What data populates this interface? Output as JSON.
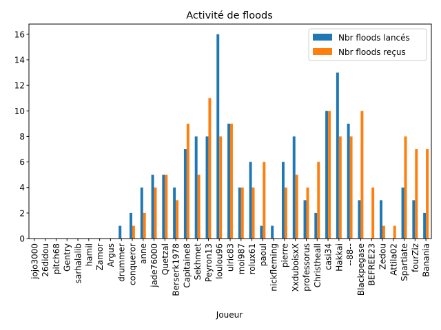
{
  "chart_data": {
    "type": "bar",
    "title": "Activité de floods",
    "xlabel": "Joueur",
    "ylabel": "",
    "ylim": [
      0,
      16.8
    ],
    "yticks": [
      0,
      2,
      4,
      6,
      8,
      10,
      12,
      14,
      16
    ],
    "grid": false,
    "legend_position": "top-right",
    "categories": [
      "jojo3000",
      "26didou",
      "pitch68",
      "Gentry",
      "sarhalalib",
      "hamil",
      "Zamor",
      "Argus",
      "drummer",
      "conqueror",
      "anne",
      "jade76000",
      "Quetzal",
      "Berserk1978",
      "Capitaine8",
      "Sekhmet",
      "Peyron13",
      "loulou96",
      "ulric83",
      "moi987",
      "rolux61",
      "paoul",
      "nickfleming",
      "pierre",
      "XxduboisxX",
      "professorus",
      "Christheall",
      "casi34",
      "Hakkai",
      "--88--",
      "Blackpegase",
      "BEFREE23",
      "Zedou",
      "Attila02",
      "Spartiate",
      "fourZiz",
      "Banania"
    ],
    "series": [
      {
        "name": "Nbr floods lancés",
        "color": "#1f77b4",
        "values": [
          0,
          0,
          0,
          0,
          0,
          0,
          0,
          0,
          1,
          2,
          4,
          5,
          5,
          4,
          7,
          8,
          8,
          16,
          9,
          4,
          6,
          1,
          1,
          6,
          8,
          3,
          2,
          10,
          13,
          9,
          3,
          0,
          3,
          0,
          4,
          3,
          2
        ]
      },
      {
        "name": "Nbr floods reçus",
        "color": "#ff7f0e",
        "values": [
          0,
          0,
          0,
          0,
          0,
          0,
          0,
          0,
          0,
          1,
          2,
          4,
          5,
          3,
          9,
          5,
          11,
          8,
          9,
          4,
          4,
          6,
          0,
          4,
          5,
          4,
          6,
          10,
          8,
          8,
          10,
          4,
          1,
          1,
          8,
          7,
          7
        ]
      }
    ]
  }
}
